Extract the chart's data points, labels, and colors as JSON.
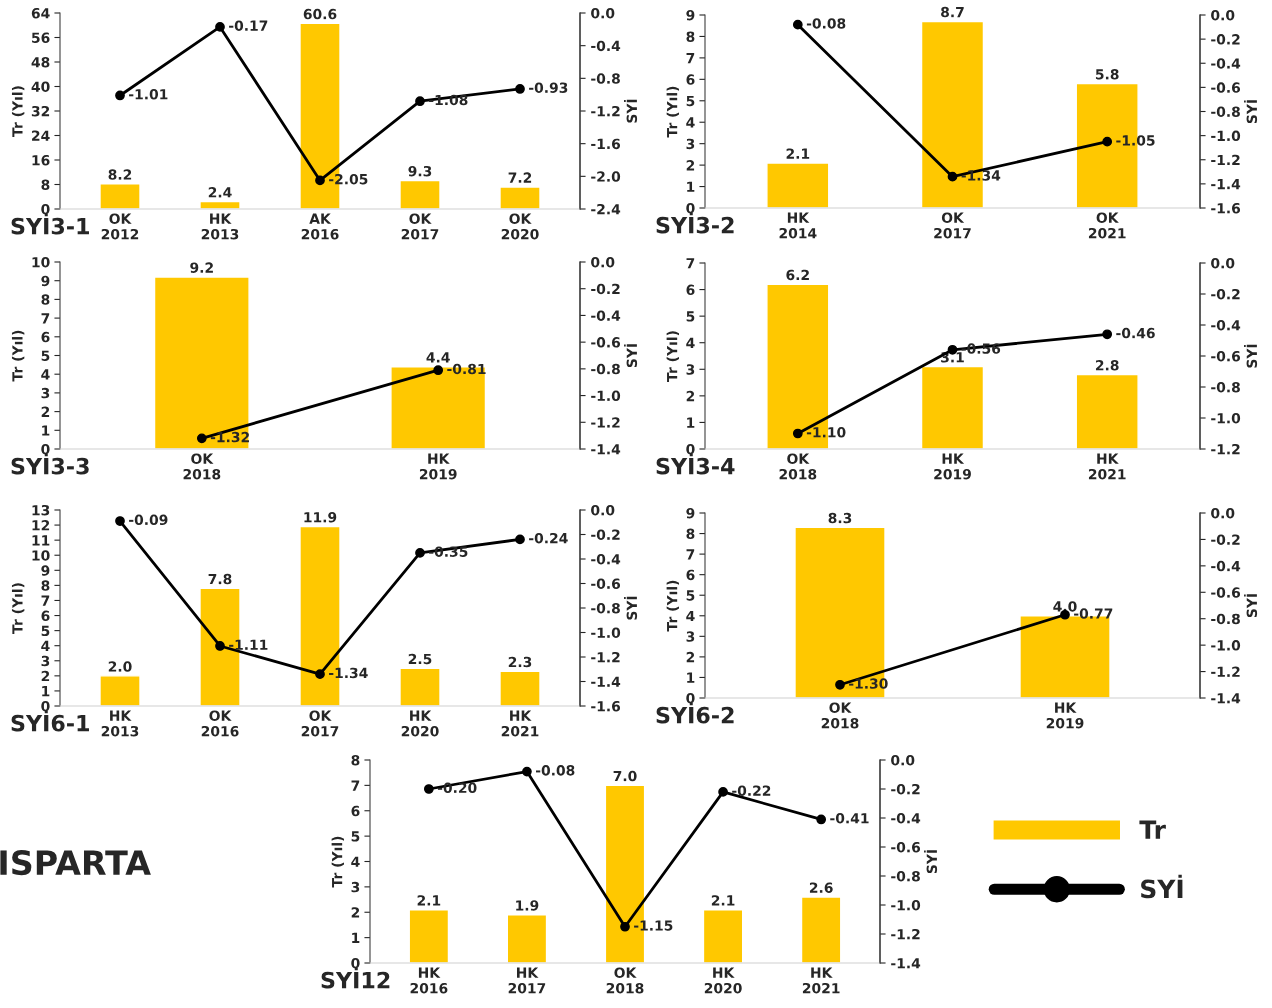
{
  "chart_data": [
    {
      "type": "bar",
      "title": "SYİ3-1",
      "ylabel": "Tr (Yıl)",
      "y2label": "SYİ",
      "categories": [
        "OK\n2012",
        "HK\n2013",
        "AK\n2016",
        "OK\n2017",
        "OK\n2020"
      ],
      "series": [
        {
          "type": "bar",
          "color": "#ffc800",
          "values": [
            8.2,
            2.4,
            60.6,
            9.3,
            7.2
          ],
          "value_labels": [
            "8.2",
            "2.4",
            "60.6",
            "9.3",
            "7.2"
          ]
        },
        {
          "type": "line",
          "axis": "y2",
          "color": "#000000",
          "values": [
            -1.01,
            -0.17,
            -2.05,
            -1.08,
            -0.93
          ],
          "value_labels": [
            "-1.01",
            "-0.17",
            "-2.05",
            "-1.08",
            "-0.93"
          ]
        }
      ],
      "ylim": [
        0,
        64
      ],
      "yticks": [
        0,
        8,
        16,
        24,
        32,
        40,
        48,
        56,
        64
      ],
      "y2lim": [
        -2.4,
        0.0
      ],
      "y2ticks": [
        {
          "value": -2.4,
          "label": "-2.4"
        },
        {
          "value": -2.0,
          "label": "-2.0"
        },
        {
          "value": -1.6,
          "label": "-1.6"
        },
        {
          "value": -1.2,
          "label": "-1.2"
        },
        {
          "value": -0.8,
          "label": "-0.8"
        },
        {
          "value": -0.4,
          "label": "-0.4"
        },
        {
          "value": 0,
          "label": "0.0"
        }
      ],
      "marker": "circle",
      "grid": false,
      "legend": false
    },
    {
      "type": "bar",
      "title": "SYİ3-2",
      "ylabel": "Tr (Yıl)",
      "y2label": "SYİ",
      "categories": [
        "HK\n2014",
        "OK\n2017",
        "OK\n2021"
      ],
      "series": [
        {
          "type": "bar",
          "color": "#ffc800",
          "values": [
            2.1,
            8.7,
            5.8
          ],
          "value_labels": [
            "2.1",
            "8.7",
            "5.8"
          ]
        },
        {
          "type": "line",
          "axis": "y2",
          "color": "#000000",
          "values": [
            -0.08,
            -1.34,
            -1.05
          ],
          "value_labels": [
            "-0.08",
            "-1.34",
            "-1.05"
          ]
        }
      ],
      "ylim": [
        0,
        9
      ],
      "yticks": [
        0,
        1,
        2,
        3,
        4,
        5,
        6,
        7,
        8,
        9
      ],
      "y2lim": [
        -1.6,
        0.0
      ],
      "y2ticks": [
        {
          "value": -1.6,
          "label": "-1.6"
        },
        {
          "value": -1.4,
          "label": "-1.4"
        },
        {
          "value": -1.2,
          "label": "-1.2"
        },
        {
          "value": -1,
          "label": "-1.0"
        },
        {
          "value": -0.8,
          "label": "-0.8"
        },
        {
          "value": -0.6,
          "label": "-0.6"
        },
        {
          "value": -0.4,
          "label": "-0.4"
        },
        {
          "value": -0.2,
          "label": "-0.2"
        },
        {
          "value": 0,
          "label": "0.0"
        }
      ],
      "marker": "circle",
      "grid": false,
      "legend": false
    },
    {
      "type": "bar",
      "title": "SYİ3-3",
      "ylabel": "Tr (Yıl)",
      "y2label": "SYİ",
      "categories": [
        "OK\n2018",
        "HK\n2019"
      ],
      "series": [
        {
          "type": "bar",
          "color": "#ffc800",
          "values": [
            9.2,
            4.4
          ],
          "value_labels": [
            "9.2",
            "4.4"
          ]
        },
        {
          "type": "line",
          "axis": "y2",
          "color": "#000000",
          "values": [
            -1.32,
            -0.81
          ],
          "value_labels": [
            "-1.32",
            "-0.81"
          ]
        }
      ],
      "ylim": [
        0,
        10
      ],
      "yticks": [
        0,
        1,
        2,
        3,
        4,
        5,
        6,
        7,
        8,
        9,
        10
      ],
      "y2lim": [
        -1.4,
        0.0
      ],
      "y2ticks": [
        {
          "value": -1.4,
          "label": "-1.4"
        },
        {
          "value": -1.2,
          "label": "-1.2"
        },
        {
          "value": -1,
          "label": "-1.0"
        },
        {
          "value": -0.8,
          "label": "-0.8"
        },
        {
          "value": -0.6,
          "label": "-0.6"
        },
        {
          "value": -0.4,
          "label": "-0.4"
        },
        {
          "value": -0.2,
          "label": "-0.2"
        },
        {
          "value": 0,
          "label": "0.0"
        }
      ],
      "marker": "circle",
      "grid": false,
      "legend": false
    },
    {
      "type": "bar",
      "title": "SYİ3-4",
      "ylabel": "Tr (Yıl)",
      "y2label": "SYİ",
      "categories": [
        "OK\n2018",
        "HK\n2019",
        "HK\n2021"
      ],
      "series": [
        {
          "type": "bar",
          "color": "#ffc800",
          "values": [
            6.2,
            3.1,
            2.8
          ],
          "value_labels": [
            "6.2",
            "3.1",
            "2.8"
          ]
        },
        {
          "type": "line",
          "axis": "y2",
          "color": "#000000",
          "values": [
            -1.1,
            -0.56,
            -0.46
          ],
          "value_labels": [
            "-1.10",
            "-0.56",
            "-0.46"
          ]
        }
      ],
      "ylim": [
        0,
        7
      ],
      "yticks": [
        0,
        1,
        2,
        3,
        4,
        5,
        6,
        7
      ],
      "y2lim": [
        -1.2,
        0.0
      ],
      "y2ticks": [
        {
          "value": -1.2,
          "label": "-1.2"
        },
        {
          "value": -1,
          "label": "-1.0"
        },
        {
          "value": -0.8,
          "label": "-0.8"
        },
        {
          "value": -0.6,
          "label": "-0.6"
        },
        {
          "value": -0.4,
          "label": "-0.4"
        },
        {
          "value": -0.2,
          "label": "-0.2"
        },
        {
          "value": 0,
          "label": "0.0"
        }
      ],
      "marker": "circle",
      "grid": false,
      "legend": false
    },
    {
      "type": "bar",
      "title": "SYİ6-1",
      "ylabel": "Tr (Yıl)",
      "y2label": "SYİ",
      "categories": [
        "HK\n2013",
        "OK\n2016",
        "OK\n2017",
        "HK\n2020",
        "HK\n2021"
      ],
      "series": [
        {
          "type": "bar",
          "color": "#ffc800",
          "values": [
            2.0,
            7.8,
            11.9,
            2.5,
            2.3
          ],
          "value_labels": [
            "2.0",
            "7.8",
            "11.9",
            "2.5",
            "2.3"
          ]
        },
        {
          "type": "line",
          "axis": "y2",
          "color": "#000000",
          "values": [
            -0.09,
            -1.11,
            -1.34,
            -0.35,
            -0.24
          ],
          "value_labels": [
            "-0.09",
            "-1.11",
            "-1.34",
            "-0.35",
            "-0.24"
          ]
        }
      ],
      "ylim": [
        0,
        13
      ],
      "yticks": [
        0,
        1,
        2,
        3,
        4,
        5,
        6,
        7,
        8,
        9,
        10,
        11,
        12,
        13
      ],
      "y2lim": [
        -1.6,
        0.0
      ],
      "y2ticks": [
        {
          "value": -1.6,
          "label": "-1.6"
        },
        {
          "value": -1.4,
          "label": "-1.4"
        },
        {
          "value": -1.2,
          "label": "-1.2"
        },
        {
          "value": -1,
          "label": "-1.0"
        },
        {
          "value": -0.8,
          "label": "-0.8"
        },
        {
          "value": -0.6,
          "label": "-0.6"
        },
        {
          "value": -0.4,
          "label": "-0.4"
        },
        {
          "value": -0.2,
          "label": "-0.2"
        },
        {
          "value": 0,
          "label": "0.0"
        }
      ],
      "marker": "circle",
      "grid": false,
      "legend": false
    },
    {
      "type": "bar",
      "title": "SYİ6-2",
      "ylabel": "Tr (Yıl)",
      "y2label": "SYİ",
      "categories": [
        "OK\n2018",
        "HK\n2019"
      ],
      "series": [
        {
          "type": "bar",
          "color": "#ffc800",
          "values": [
            8.3,
            4.0
          ],
          "value_labels": [
            "8.3",
            "4.0"
          ]
        },
        {
          "type": "line",
          "axis": "y2",
          "color": "#000000",
          "values": [
            -1.3,
            -0.77
          ],
          "value_labels": [
            "-1.30",
            "-0.77"
          ]
        }
      ],
      "ylim": [
        0,
        9
      ],
      "yticks": [
        0,
        1,
        2,
        3,
        4,
        5,
        6,
        7,
        8,
        9
      ],
      "y2lim": [
        -1.4,
        0.0
      ],
      "y2ticks": [
        {
          "value": -1.4,
          "label": "-1.4"
        },
        {
          "value": -1.2,
          "label": "-1.2"
        },
        {
          "value": -1,
          "label": "-1.0"
        },
        {
          "value": -0.8,
          "label": "-0.8"
        },
        {
          "value": -0.6,
          "label": "-0.6"
        },
        {
          "value": -0.4,
          "label": "-0.4"
        },
        {
          "value": -0.2,
          "label": "-0.2"
        },
        {
          "value": 0,
          "label": "0.0"
        }
      ],
      "marker": "circle",
      "grid": false,
      "legend": false
    },
    {
      "type": "bar",
      "title": "SYİ12",
      "ylabel": "Tr (Yıl)",
      "y2label": "SYİ",
      "categories": [
        "HK\n2016",
        "HK\n2017",
        "OK\n2018",
        "HK\n2020",
        "HK\n2021"
      ],
      "series": [
        {
          "type": "bar",
          "name": "Tr",
          "color": "#ffc800",
          "values": [
            2.1,
            1.9,
            7.0,
            2.1,
            2.6
          ],
          "value_labels": [
            "2.1",
            "1.9",
            "7.0",
            "2.1",
            "2.6"
          ]
        },
        {
          "type": "line",
          "name": "SYİ",
          "axis": "y2",
          "color": "#000000",
          "values": [
            -0.2,
            -0.08,
            -1.15,
            -0.22,
            -0.41
          ],
          "value_labels": [
            "-0.20",
            "-0.08",
            "-1.15",
            "-0.22",
            "-0.41"
          ]
        }
      ],
      "ylim": [
        0,
        8
      ],
      "yticks": [
        0,
        1,
        2,
        3,
        4,
        5,
        6,
        7,
        8
      ],
      "y2lim": [
        -1.4,
        0.0
      ],
      "y2ticks": [
        {
          "value": -1.4,
          "label": "-1.4"
        },
        {
          "value": -1.2,
          "label": "-1.2"
        },
        {
          "value": -1,
          "label": "-1.0"
        },
        {
          "value": -0.8,
          "label": "-0.8"
        },
        {
          "value": -0.6,
          "label": "-0.6"
        },
        {
          "value": -0.4,
          "label": "-0.4"
        },
        {
          "value": -0.2,
          "label": "-0.2"
        },
        {
          "value": 0,
          "label": "0.0"
        }
      ],
      "marker": "circle",
      "grid": false,
      "legend": "right",
      "annotations": [
        "ISPARTA"
      ]
    }
  ]
}
